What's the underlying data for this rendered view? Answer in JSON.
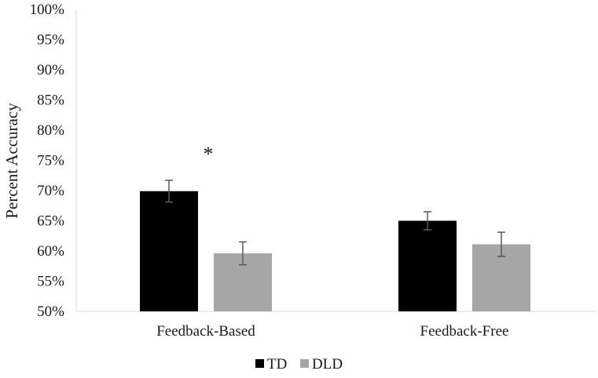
{
  "chart_data": {
    "type": "bar",
    "title": "",
    "xlabel": "",
    "ylabel": "Percent Accuracy",
    "ylim": [
      50,
      100
    ],
    "yticks": [
      "50%",
      "55%",
      "60%",
      "65%",
      "70%",
      "75%",
      "80%",
      "85%",
      "90%",
      "95%",
      "100%"
    ],
    "ytick_values": [
      50,
      55,
      60,
      65,
      70,
      75,
      80,
      85,
      90,
      95,
      100
    ],
    "categories": [
      "Feedback-Based",
      "Feedback-Free"
    ],
    "series": [
      {
        "name": "TD",
        "color": "#000000",
        "values": [
          69.9,
          65.0
        ],
        "errors": [
          1.8,
          1.5
        ]
      },
      {
        "name": "DLD",
        "color": "#a6a6a6",
        "values": [
          59.6,
          61.1
        ],
        "errors": [
          1.9,
          2.0
        ]
      }
    ],
    "error_bar_color": "#595959",
    "grid": false,
    "legend_position": "bottom",
    "annotations": [
      {
        "text": "*",
        "category": "Feedback-Based",
        "value": 76.5
      }
    ]
  }
}
